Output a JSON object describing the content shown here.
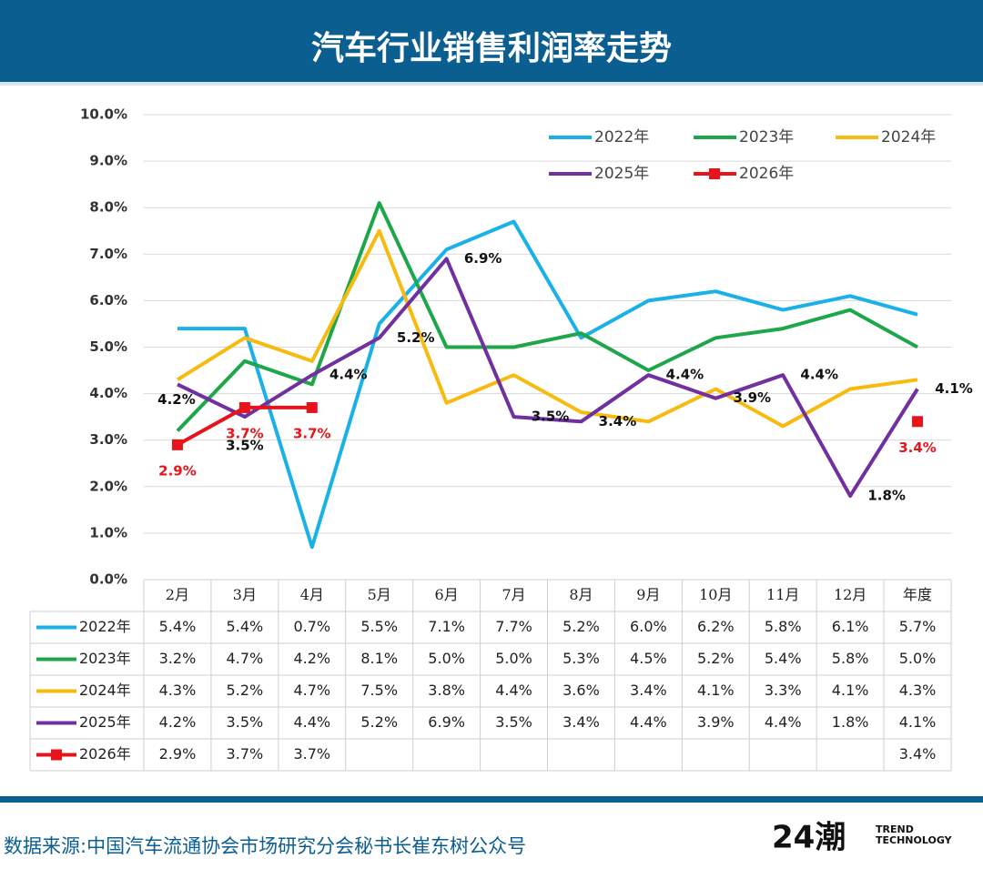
{
  "chart_data": {
    "type": "line",
    "title": "汽车行业销售利润率走势",
    "categories": [
      "2月",
      "3月",
      "4月",
      "5月",
      "6月",
      "7月",
      "8月",
      "9月",
      "10月",
      "11月",
      "12月",
      "年度"
    ],
    "ylim": [
      0,
      10
    ],
    "yticks": [
      {
        "value": 0,
        "label": "0.0%"
      },
      {
        "value": 1,
        "label": "1.0%"
      },
      {
        "value": 2,
        "label": "2.0%"
      },
      {
        "value": 3,
        "label": "3.0%"
      },
      {
        "value": 4,
        "label": "4.0%"
      },
      {
        "value": 5,
        "label": "5.0%"
      },
      {
        "value": 6,
        "label": "6.0%"
      },
      {
        "value": 7,
        "label": "7.0%"
      },
      {
        "value": 8,
        "label": "8.0%"
      },
      {
        "value": 9,
        "label": "9.0%"
      },
      {
        "value": 10,
        "label": "10.0%"
      }
    ],
    "grid": true,
    "series": [
      {
        "name": "2022年",
        "color": "#1ab0e8",
        "values": [
          5.4,
          5.4,
          0.7,
          5.5,
          7.1,
          7.7,
          5.2,
          6.0,
          6.2,
          5.8,
          6.1,
          5.7
        ],
        "value_labels": [
          "5.4%",
          "5.4%",
          "0.7%",
          "5.5%",
          "7.1%",
          "7.7%",
          "5.2%",
          "6.0%",
          "6.2%",
          "5.8%",
          "6.1%",
          "5.7%"
        ]
      },
      {
        "name": "2023年",
        "color": "#1ea64a",
        "values": [
          3.2,
          4.7,
          4.2,
          8.1,
          5.0,
          5.0,
          5.3,
          4.5,
          5.2,
          5.4,
          5.8,
          5.0
        ],
        "value_labels": [
          "3.2%",
          "4.7%",
          "4.2%",
          "8.1%",
          "5.0%",
          "5.0%",
          "5.3%",
          "4.5%",
          "5.2%",
          "5.4%",
          "5.8%",
          "5.0%"
        ]
      },
      {
        "name": "2024年",
        "color": "#f7bb10",
        "values": [
          4.3,
          5.2,
          4.7,
          7.5,
          3.8,
          4.4,
          3.6,
          3.4,
          4.1,
          3.3,
          4.1,
          4.3
        ],
        "value_labels": [
          "4.3%",
          "5.2%",
          "4.7%",
          "7.5%",
          "3.8%",
          "4.4%",
          "3.6%",
          "3.4%",
          "4.1%",
          "3.3%",
          "4.1%",
          "4.3%"
        ]
      },
      {
        "name": "2025年",
        "color": "#7030a0",
        "values": [
          4.2,
          3.5,
          4.4,
          5.2,
          6.9,
          3.5,
          3.4,
          4.4,
          3.9,
          4.4,
          1.8,
          4.1
        ],
        "value_labels": [
          "4.2%",
          "3.5%",
          "4.4%",
          "5.2%",
          "6.9%",
          "3.5%",
          "3.4%",
          "4.4%",
          "3.9%",
          "4.4%",
          "1.8%",
          "4.1%"
        ]
      },
      {
        "name": "2026年",
        "color": "#e8141b",
        "values": [
          2.9,
          3.7,
          3.7,
          null,
          null,
          null,
          null,
          null,
          null,
          null,
          null,
          3.4
        ],
        "value_labels": [
          "2.9%",
          "3.7%",
          "3.7%",
          null,
          null,
          null,
          null,
          null,
          null,
          null,
          null,
          "3.4%"
        ]
      }
    ],
    "source": "数据来源:中国汽车流通协会市场研究分会秘书长崔东树公众号",
    "logo": "24潮",
    "logo_sub1": "TREND",
    "logo_sub2": "TECHNOLOGY"
  }
}
